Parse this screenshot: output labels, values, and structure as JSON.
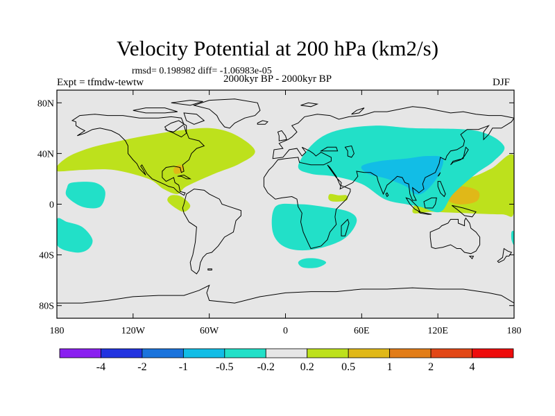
{
  "title": "Velocity Potential at 200 hPa (km2/s)",
  "stats": "rmsd= 0.198982 diff= -1.06983e-05",
  "left_label": "Expt = tfmdw-tewtw",
  "center_label": "2000kyr BP - 2000kyr BP",
  "right_label": "DJF",
  "axes": {
    "lat_ticks": [
      {
        "value": 80,
        "label": "80N"
      },
      {
        "value": 40,
        "label": "40N"
      },
      {
        "value": 0,
        "label": "0"
      },
      {
        "value": -40,
        "label": "40S"
      },
      {
        "value": -80,
        "label": "80S"
      }
    ],
    "lon_ticks": [
      {
        "value": -180,
        "label": "180"
      },
      {
        "value": -120,
        "label": "120W"
      },
      {
        "value": -60,
        "label": "60W"
      },
      {
        "value": 0,
        "label": "0"
      },
      {
        "value": 60,
        "label": "60E"
      },
      {
        "value": 120,
        "label": "120E"
      },
      {
        "value": 180,
        "label": "180"
      }
    ]
  },
  "colorbar": {
    "colors": [
      "#8a1ff0",
      "#2233e0",
      "#1a73dc",
      "#12bde6",
      "#22e0c8",
      "#e6e6e6",
      "#bde11c",
      "#e0b818",
      "#e27d18",
      "#e24716",
      "#ee0c0c"
    ],
    "labels": [
      "-4",
      "-2",
      "-1",
      "-0.5",
      "-0.2",
      "0.2",
      "0.5",
      "1",
      "2",
      "4"
    ]
  },
  "chart_data": {
    "type": "heatmap",
    "title": "Velocity Potential at 200 hPa (km2/s)",
    "units": "km2/s",
    "xlim": [
      -180,
      180
    ],
    "ylim": [
      -90,
      90
    ],
    "levels": [
      -4,
      -2,
      -1,
      -0.5,
      -0.2,
      0.2,
      0.5,
      1,
      2,
      4
    ],
    "background_value_range": [
      -0.2,
      0.2
    ],
    "regions": [
      {
        "name": "North Atlantic / North America positive",
        "color": "#bde11c",
        "range": [
          0.2,
          0.5
        ],
        "outline": [
          [
            -180,
            30
          ],
          [
            -170,
            38
          ],
          [
            -152,
            45
          ],
          [
            -130,
            50
          ],
          [
            -110,
            54
          ],
          [
            -85,
            58
          ],
          [
            -60,
            60
          ],
          [
            -40,
            55
          ],
          [
            -24,
            42
          ],
          [
            -36,
            32
          ],
          [
            -56,
            24
          ],
          [
            -78,
            14
          ],
          [
            -85,
            8
          ],
          [
            -96,
            12
          ],
          [
            -108,
            20
          ],
          [
            -135,
            27
          ],
          [
            -160,
            27
          ],
          [
            -180,
            26
          ]
        ]
      },
      {
        "name": "Central America positive",
        "color": "#bde11c",
        "range": [
          0.2,
          0.5
        ],
        "outline": [
          [
            -90,
            7
          ],
          [
            -82,
            6
          ],
          [
            -75,
            -1
          ],
          [
            -80,
            -6
          ],
          [
            -88,
            -2
          ],
          [
            -93,
            3
          ]
        ]
      },
      {
        "name": "Caribbean maximum",
        "color": "#e0b818",
        "range": [
          0.5,
          1
        ],
        "outline": [
          [
            -88,
            28
          ],
          [
            -84,
            31
          ],
          [
            -80,
            29
          ],
          [
            -82,
            25
          ],
          [
            -87,
            24
          ]
        ]
      },
      {
        "name": "Maritime continent positive",
        "color": "#bde11c",
        "range": [
          0.2,
          0.5
        ],
        "outline": [
          [
            100,
            -6
          ],
          [
            110,
            12
          ],
          [
            125,
            20
          ],
          [
            145,
            21
          ],
          [
            162,
            28
          ],
          [
            180,
            38
          ],
          [
            180,
            -6
          ],
          [
            170,
            -8
          ],
          [
            140,
            -7
          ],
          [
            115,
            -6
          ]
        ]
      },
      {
        "name": "West Pacific maximum",
        "color": "#e0b818",
        "range": [
          0.5,
          1
        ],
        "outline": [
          [
            124,
            6
          ],
          [
            128,
            12
          ],
          [
            140,
            14
          ],
          [
            152,
            10
          ],
          [
            150,
            2
          ],
          [
            135,
            0
          ]
        ]
      },
      {
        "name": "Asia negative",
        "color": "#22e0c8",
        "range": [
          -0.5,
          -0.2
        ],
        "outline": [
          [
            10,
            30
          ],
          [
            22,
            48
          ],
          [
            40,
            58
          ],
          [
            70,
            62
          ],
          [
            100,
            60
          ],
          [
            150,
            58
          ],
          [
            172,
            46
          ],
          [
            164,
            34
          ],
          [
            150,
            24
          ],
          [
            132,
            8
          ],
          [
            122,
            -6
          ],
          [
            106,
            -2
          ],
          [
            95,
            0
          ],
          [
            78,
            4
          ],
          [
            60,
            16
          ],
          [
            38,
            22
          ],
          [
            20,
            24
          ]
        ]
      },
      {
        "name": "East Asia minimum",
        "color": "#12bde6",
        "range": [
          -1,
          -0.5
        ],
        "outline": [
          [
            60,
            30
          ],
          [
            74,
            34
          ],
          [
            95,
            36
          ],
          [
            112,
            38
          ],
          [
            124,
            36
          ],
          [
            120,
            22
          ],
          [
            110,
            10
          ],
          [
            102,
            8
          ],
          [
            95,
            14
          ],
          [
            80,
            20
          ],
          [
            65,
            24
          ]
        ]
      },
      {
        "name": "Africa / South Atlantic negative",
        "color": "#22e0c8",
        "range": [
          -0.5,
          -0.2
        ],
        "outline": [
          [
            -8,
            -2
          ],
          [
            10,
            0
          ],
          [
            30,
            -2
          ],
          [
            50,
            -6
          ],
          [
            56,
            -14
          ],
          [
            45,
            -28
          ],
          [
            20,
            -36
          ],
          [
            0,
            -34
          ],
          [
            -10,
            -22
          ]
        ]
      },
      {
        "name": "Subtropical North Pacific negative",
        "color": "#22e0c8",
        "range": [
          -0.5,
          -0.2
        ],
        "outline": [
          [
            -172,
            13
          ],
          [
            -168,
            17
          ],
          [
            -150,
            17
          ],
          [
            -142,
            10
          ],
          [
            -146,
            -2
          ],
          [
            -160,
            -2
          ],
          [
            -172,
            6
          ]
        ]
      },
      {
        "name": "South Pacific negative",
        "color": "#22e0c8",
        "range": [
          -0.5,
          -0.2
        ],
        "outline": [
          [
            -180,
            -12
          ],
          [
            -172,
            -14
          ],
          [
            -160,
            -18
          ],
          [
            -152,
            -28
          ],
          [
            -156,
            -36
          ],
          [
            -166,
            -38
          ],
          [
            -180,
            -32
          ]
        ]
      },
      {
        "name": "Southern Ocean negative",
        "color": "#22e0c8",
        "range": [
          -0.5,
          -0.2
        ],
        "outline": [
          [
            10,
            -46
          ],
          [
            15,
            -43
          ],
          [
            25,
            -43
          ],
          [
            32,
            -46
          ],
          [
            25,
            -50
          ],
          [
            14,
            -50
          ]
        ]
      },
      {
        "name": "Eastern Atlantic positive",
        "color": "#bde11c",
        "range": [
          0.2,
          0.5
        ],
        "outline": [
          [
            35,
            8
          ],
          [
            42,
            7
          ],
          [
            48,
            7
          ],
          [
            48,
            3
          ],
          [
            38,
            2
          ],
          [
            34,
            4
          ]
        ]
      },
      {
        "name": "Indian Ocean edge negative",
        "color": "#22e0c8",
        "range": [
          -0.5,
          -0.2
        ],
        "outline": [
          [
            178,
            -22
          ],
          [
            180,
            -22
          ],
          [
            180,
            -32
          ],
          [
            178,
            -28
          ]
        ]
      }
    ]
  }
}
